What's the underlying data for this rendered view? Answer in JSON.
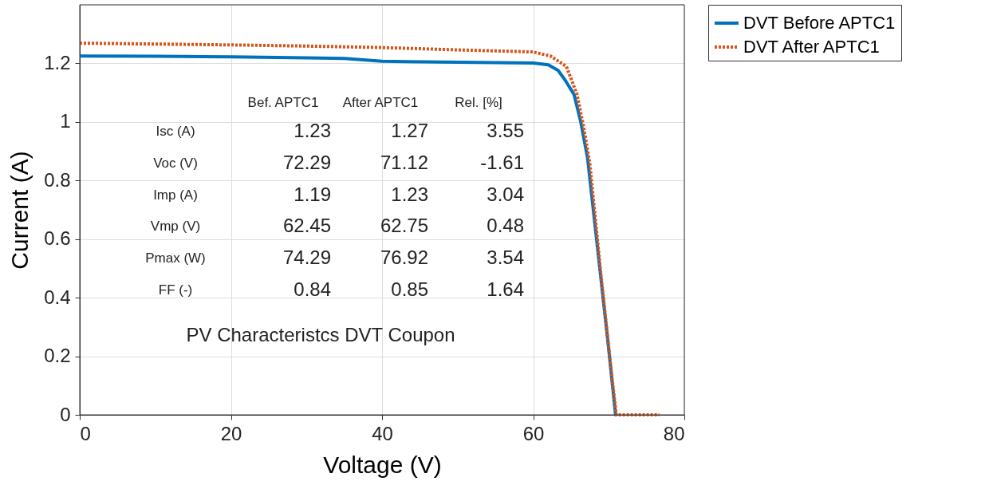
{
  "chart_data": {
    "type": "line",
    "xlabel": "Voltage (V)",
    "ylabel": "Current (A)",
    "xlim": [
      0,
      80
    ],
    "xticks": [
      0,
      20,
      40,
      60,
      80
    ],
    "ylim": [
      0,
      1.4
    ],
    "yticks": [
      0,
      0.2,
      0.4,
      0.6,
      0.8,
      1,
      1.2
    ],
    "grid": true,
    "legend": "top right",
    "marker": "none",
    "series": [
      {
        "name": "DVT Before APTC1",
        "color": "#0072bd",
        "line_style": "solid",
        "x": [
          0,
          10,
          20,
          30,
          35,
          40,
          50,
          60,
          62,
          63.3,
          64.3,
          65.4,
          66.3,
          67.2,
          68.6,
          70.0,
          70.9,
          71.0
        ],
        "values": [
          1.225,
          1.224,
          1.222,
          1.219,
          1.217,
          1.207,
          1.204,
          1.201,
          1.195,
          1.176,
          1.14,
          1.094,
          1.0,
          0.876,
          0.55,
          0.223,
          0,
          0
        ]
      },
      {
        "name": "DVT After APTC1",
        "color": "#d95319",
        "line_style": "dotted",
        "x": [
          0,
          10,
          20,
          30,
          40,
          50,
          60,
          62.3,
          64.4,
          65.8,
          66.7,
          67.5,
          68.9,
          70.4,
          71.0,
          73,
          76.7
        ],
        "values": [
          1.269,
          1.266,
          1.263,
          1.259,
          1.254,
          1.246,
          1.239,
          1.225,
          1.189,
          1.094,
          0.98,
          0.857,
          0.495,
          0.133,
          0,
          0,
          0
        ]
      }
    ],
    "annotations": [
      "Bef. APTC1",
      "After APTC1",
      "Rel. [%]",
      "Isc (A)",
      "1.23",
      "1.27",
      "3.55",
      "Voc (V)",
      "72.29",
      "71.12",
      "-1.61",
      "Imp (A)",
      "1.19",
      "1.23",
      "3.04",
      "Vmp (V)",
      "62.45",
      "62.75",
      "0.48",
      "Pmax (W)",
      "74.29",
      "76.92",
      "3.54",
      "FF (-)",
      "0.84",
      "0.85",
      "1.64",
      "PV Characteristcs DVT Coupon"
    ]
  }
}
